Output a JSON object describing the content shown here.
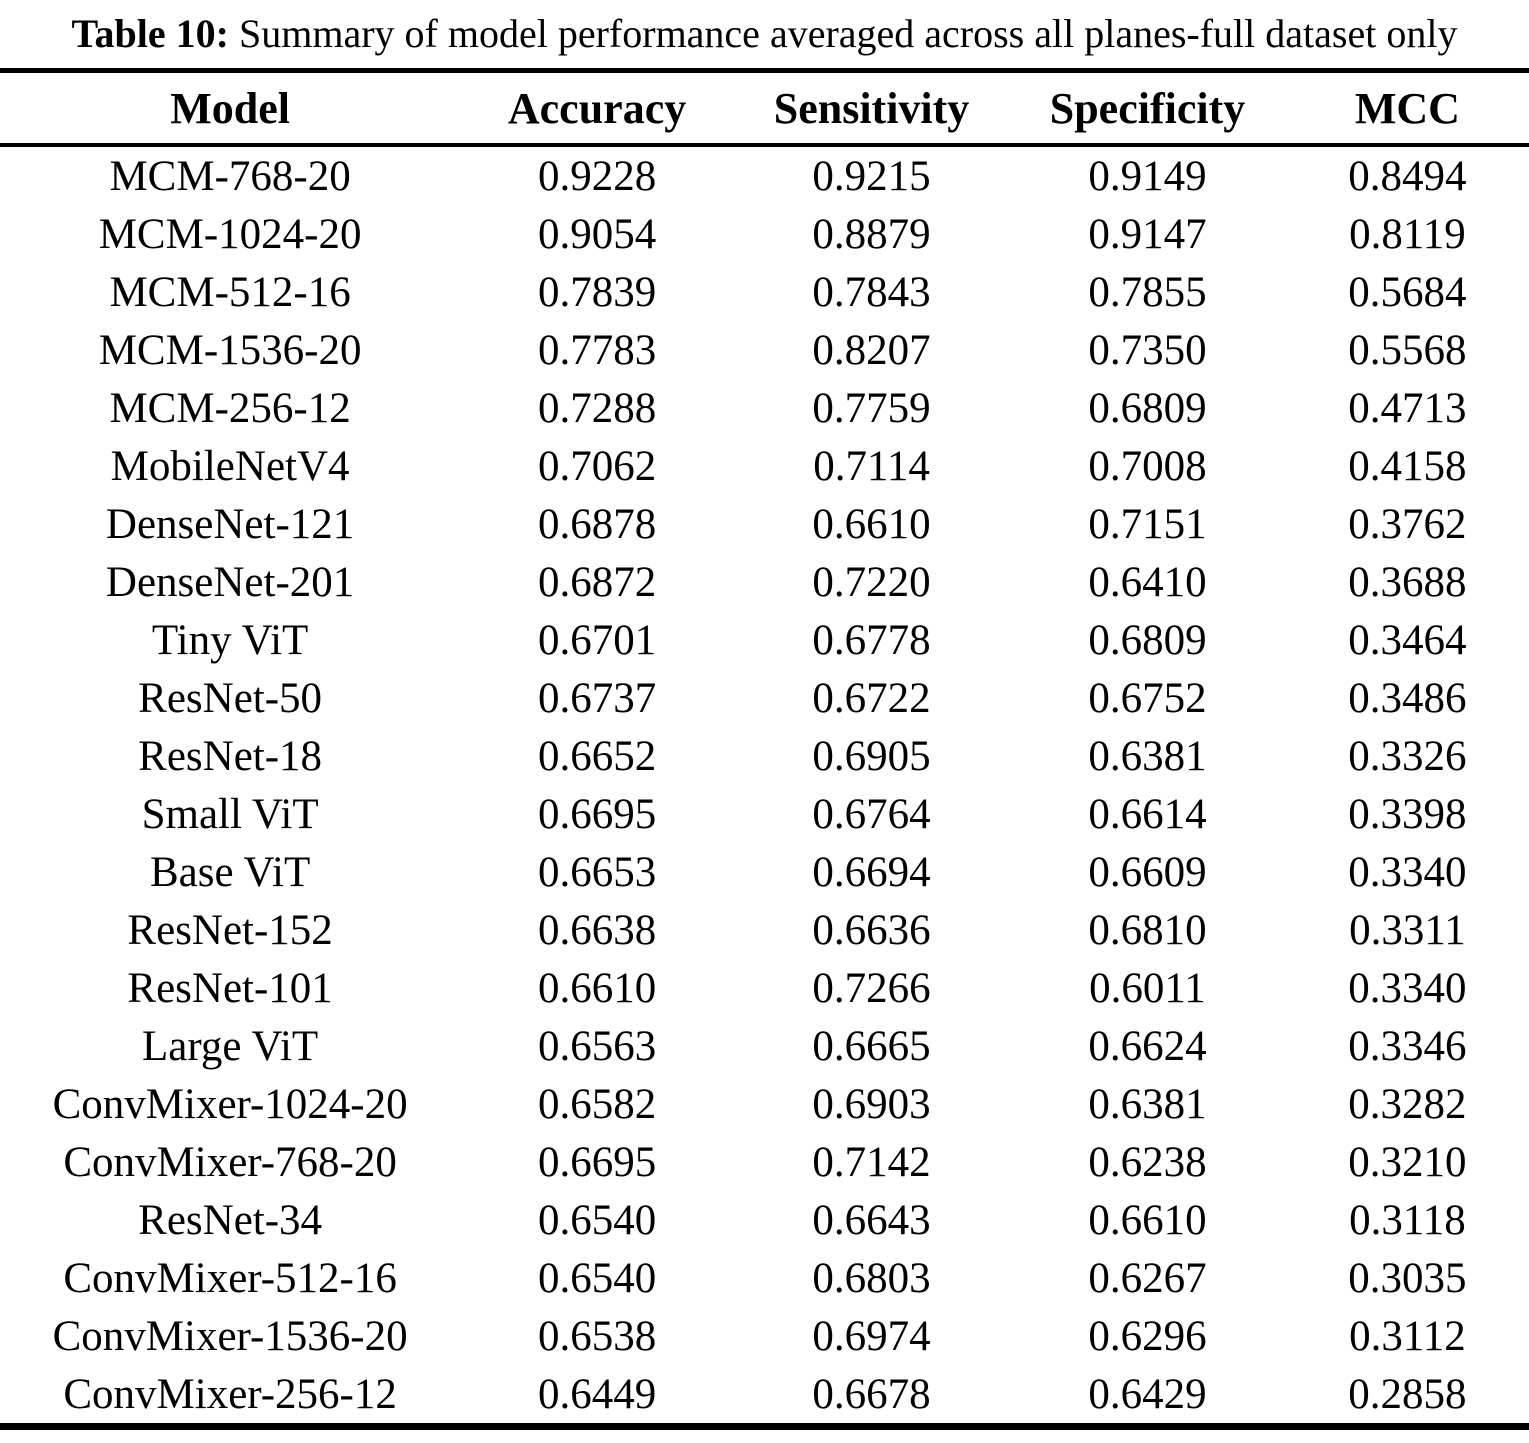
{
  "page": {
    "background_color": "#ffffff",
    "text_color": "#000000",
    "rule_color": "#000000"
  },
  "caption": {
    "label": "Table 10:",
    "text": " Summary of model performance averaged across all planes-full dataset only"
  },
  "table": {
    "columns": [
      "Model",
      "Accuracy",
      "Sensitivity",
      "Specificity",
      "MCC"
    ],
    "rows": [
      [
        "MCM-768-20",
        "0.9228",
        "0.9215",
        "0.9149",
        "0.8494"
      ],
      [
        "MCM-1024-20",
        "0.9054",
        "0.8879",
        "0.9147",
        "0.8119"
      ],
      [
        "MCM-512-16",
        "0.7839",
        "0.7843",
        "0.7855",
        "0.5684"
      ],
      [
        "MCM-1536-20",
        "0.7783",
        "0.8207",
        "0.7350",
        "0.5568"
      ],
      [
        "MCM-256-12",
        "0.7288",
        "0.7759",
        "0.6809",
        "0.4713"
      ],
      [
        "MobileNetV4",
        "0.7062",
        "0.7114",
        "0.7008",
        "0.4158"
      ],
      [
        "DenseNet-121",
        "0.6878",
        "0.6610",
        "0.7151",
        "0.3762"
      ],
      [
        "DenseNet-201",
        "0.6872",
        "0.7220",
        "0.6410",
        "0.3688"
      ],
      [
        "Tiny ViT",
        "0.6701",
        "0.6778",
        "0.6809",
        "0.3464"
      ],
      [
        "ResNet-50",
        "0.6737",
        "0.6722",
        "0.6752",
        "0.3486"
      ],
      [
        "ResNet-18",
        "0.6652",
        "0.6905",
        "0.6381",
        "0.3326"
      ],
      [
        "Small ViT",
        "0.6695",
        "0.6764",
        "0.6614",
        "0.3398"
      ],
      [
        "Base ViT",
        "0.6653",
        "0.6694",
        "0.6609",
        "0.3340"
      ],
      [
        "ResNet-152",
        "0.6638",
        "0.6636",
        "0.6810",
        "0.3311"
      ],
      [
        "ResNet-101",
        "0.6610",
        "0.7266",
        "0.6011",
        "0.3340"
      ],
      [
        "Large ViT",
        "0.6563",
        "0.6665",
        "0.6624",
        "0.3346"
      ],
      [
        "ConvMixer-1024-20",
        "0.6582",
        "0.6903",
        "0.6381",
        "0.3282"
      ],
      [
        "ConvMixer-768-20",
        "0.6695",
        "0.7142",
        "0.6238",
        "0.3210"
      ],
      [
        "ResNet-34",
        "0.6540",
        "0.6643",
        "0.6610",
        "0.3118"
      ],
      [
        "ConvMixer-512-16",
        "0.6540",
        "0.6803",
        "0.6267",
        "0.3035"
      ],
      [
        "ConvMixer-1536-20",
        "0.6538",
        "0.6974",
        "0.6296",
        "0.3112"
      ],
      [
        "ConvMixer-256-12",
        "0.6449",
        "0.6678",
        "0.6429",
        "0.2858"
      ]
    ]
  }
}
